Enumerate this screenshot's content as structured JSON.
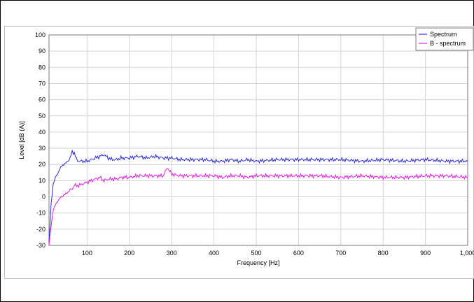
{
  "chart_data": {
    "type": "line",
    "xlabel": "Frequency [Hz]",
    "ylabel": "Level [dB (A)]",
    "xlim": [
      10,
      1000
    ],
    "ylim": [
      -30,
      100
    ],
    "x_ticks": [
      "100",
      "200",
      "300",
      "400",
      "500",
      "600",
      "700",
      "800",
      "900",
      "1,000"
    ],
    "x_tick_values": [
      100,
      200,
      300,
      400,
      500,
      600,
      700,
      800,
      900,
      1000
    ],
    "y_ticks": [
      "100",
      "90",
      "80",
      "70",
      "60",
      "50",
      "40",
      "30",
      "20",
      "10",
      "0",
      "-10",
      "-20",
      "-30"
    ],
    "y_tick_values": [
      100,
      90,
      80,
      70,
      60,
      50,
      40,
      30,
      20,
      10,
      0,
      -10,
      -20,
      -30
    ],
    "grid": true,
    "legend_position": "top-right",
    "series": [
      {
        "name": "Spectrum",
        "color": "#2a2ae0",
        "x": [
          10,
          15,
          20,
          25,
          30,
          35,
          40,
          45,
          50,
          55,
          60,
          65,
          70,
          75,
          80,
          90,
          100,
          110,
          120,
          130,
          140,
          150,
          160,
          170,
          180,
          190,
          200,
          220,
          240,
          260,
          280,
          300,
          320,
          340,
          360,
          380,
          400,
          420,
          440,
          460,
          480,
          500,
          550,
          600,
          650,
          700,
          750,
          800,
          850,
          900,
          950,
          1000
        ],
        "y": [
          -28,
          -5,
          8,
          12,
          14,
          17,
          19,
          20,
          21,
          22,
          24,
          28,
          27,
          23,
          22,
          22,
          22,
          23,
          24,
          25,
          26,
          24,
          23,
          23,
          24,
          24,
          24,
          25,
          24,
          25,
          24,
          24,
          23,
          23,
          23,
          23,
          22,
          22,
          23,
          22,
          23,
          22,
          23,
          23,
          23,
          23,
          22,
          23,
          22,
          23,
          22,
          22
        ]
      },
      {
        "name": "B - spectrum",
        "color": "#e020e0",
        "x": [
          10,
          15,
          20,
          25,
          30,
          35,
          40,
          45,
          50,
          55,
          60,
          65,
          70,
          75,
          80,
          90,
          100,
          110,
          120,
          130,
          140,
          150,
          160,
          170,
          180,
          190,
          200,
          220,
          240,
          260,
          280,
          290,
          300,
          320,
          340,
          360,
          380,
          400,
          420,
          440,
          460,
          480,
          500,
          550,
          600,
          650,
          700,
          750,
          800,
          850,
          900,
          950,
          1000
        ],
        "y": [
          -30,
          -18,
          -8,
          -5,
          -3,
          -1,
          0,
          1,
          2,
          3,
          4,
          5,
          7,
          7,
          7,
          8,
          9,
          10,
          11,
          12,
          10,
          11,
          11,
          11,
          12,
          12,
          12,
          13,
          13,
          13,
          13,
          18,
          14,
          13,
          13,
          13,
          13,
          13,
          12,
          13,
          13,
          12,
          13,
          13,
          13,
          13,
          12,
          13,
          12,
          12,
          13,
          13,
          12
        ]
      }
    ]
  }
}
